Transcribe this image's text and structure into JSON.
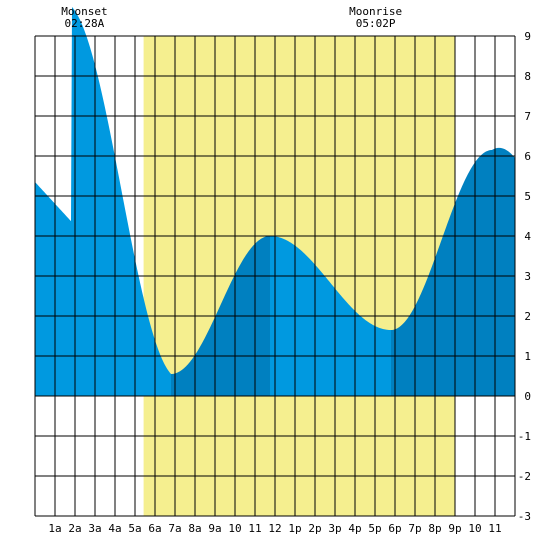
{
  "chart_data": {
    "type": "area",
    "moon_events": [
      {
        "label": "Moonset",
        "time": "02:28A",
        "hour": 2.47
      },
      {
        "label": "Moonrise",
        "time": "05:02P",
        "hour": 17.03
      }
    ],
    "daylight": {
      "start_hour": 5.43,
      "end_hour": 21.0
    },
    "x_tick_labels": [
      "1a",
      "2a",
      "3a",
      "4a",
      "5a",
      "6a",
      "7a",
      "8a",
      "9a",
      "10",
      "11",
      "12",
      "1p",
      "2p",
      "3p",
      "4p",
      "5p",
      "6p",
      "7p",
      "8p",
      "9p",
      "10",
      "11"
    ],
    "xlim": [
      0,
      24
    ],
    "ylim": [
      -3,
      9
    ],
    "y_ticks": [
      "-3",
      "-2",
      "-1",
      "0",
      "1",
      "2",
      "3",
      "4",
      "5",
      "6",
      "7",
      "8",
      "9"
    ],
    "grid": true,
    "tide_extremes": [
      {
        "hour": 6.8,
        "height": 0.55,
        "kind": "low"
      },
      {
        "hour": 11.75,
        "height": 4.0,
        "kind": "high"
      },
      {
        "hour": 17.8,
        "height": 1.65,
        "kind": "low"
      },
      {
        "hour": 22.85,
        "height": 6.15,
        "kind": "high"
      }
    ],
    "start_height": 5.35,
    "end_height": 5.95,
    "colors": {
      "water": "#0099e0",
      "water_rising": "#0080c0",
      "daylight": "#f5ef8f",
      "grid": "#000000",
      "zero_line": "#000000"
    }
  }
}
